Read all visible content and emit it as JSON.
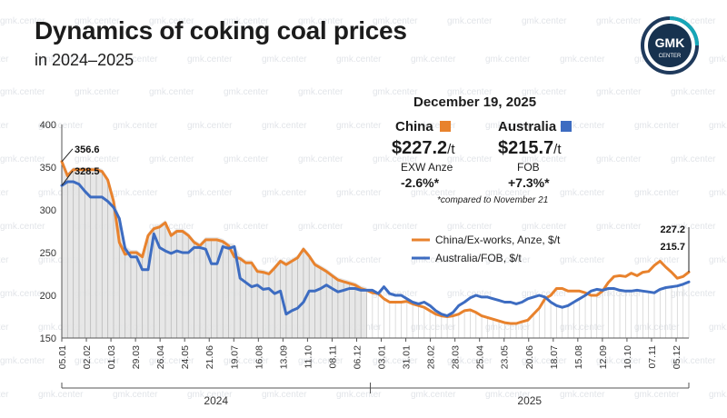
{
  "header": {
    "title": "Dynamics of coking coal prices",
    "subtitle": "in 2024–2025",
    "logo_text_top": "GMK",
    "logo_text_bottom": "CENTER"
  },
  "watermark": "gmk.center",
  "info_box": {
    "date": "December 19, 2025",
    "china": {
      "label": "China",
      "price": "$227.2",
      "unit": "/t",
      "basis": "EXW Anze",
      "change": "-2.6%*"
    },
    "australia": {
      "label": "Australia",
      "price": "$215.7",
      "unit": "/t",
      "basis": "FOB",
      "change": "+7.3%*"
    },
    "footnote": "*compared to November 21"
  },
  "colors": {
    "china": "#e8822d",
    "australia": "#3d6cc1",
    "grid": "#dedede",
    "shade": "#e4e4e4",
    "text": "#1c1c1c"
  },
  "chart_data": {
    "type": "line",
    "ylim": [
      150,
      400
    ],
    "yticks": [
      150,
      200,
      250,
      300,
      350,
      400
    ],
    "xtick_labels": [
      "05.01",
      "02.02",
      "01.03",
      "29.03",
      "26.04",
      "24.05",
      "21.06",
      "19.07",
      "16.08",
      "13.09",
      "11.10",
      "08.11",
      "06.12",
      "03.01",
      "31.01",
      "28.02",
      "28.03",
      "25.04",
      "23.05",
      "20.06",
      "18.07",
      "15.08",
      "12.09",
      "10.10",
      "07.11",
      "05.12"
    ],
    "years": [
      "2024",
      "2025"
    ],
    "series": [
      {
        "name": "China/Ex-works, Anze, $/t",
        "color": "#e8822d",
        "values": [
          356.6,
          340,
          347,
          347,
          347,
          347,
          347,
          345,
          335,
          310,
          262,
          248,
          250,
          250,
          245,
          270,
          278,
          280,
          285,
          270,
          275,
          275,
          270,
          262,
          258,
          265,
          265,
          265,
          263,
          258,
          245,
          243,
          238,
          238,
          228,
          227,
          225,
          232,
          240,
          236,
          240,
          244,
          254,
          246,
          236,
          232,
          228,
          223,
          218,
          216,
          214,
          212,
          208,
          206,
          203,
          202,
          196,
          192,
          192,
          192,
          193,
          190,
          188,
          186,
          182,
          178,
          176,
          175,
          176,
          178,
          182,
          183,
          180,
          176,
          174,
          172,
          170,
          168,
          167,
          167,
          169,
          171,
          178,
          185,
          196,
          200,
          208,
          208,
          205,
          205,
          205,
          203,
          200,
          200,
          205,
          215,
          222,
          223,
          222,
          226,
          223,
          227,
          228,
          235,
          240,
          233,
          227,
          220,
          222,
          227.2
        ]
      },
      {
        "name": "Australia/FOB, $/t",
        "color": "#3d6cc1",
        "values": [
          328.5,
          333,
          333,
          330,
          322,
          315,
          315,
          315,
          310,
          303,
          290,
          255,
          245,
          245,
          230,
          230,
          272,
          256,
          252,
          249,
          252,
          250,
          250,
          256,
          256,
          254,
          237,
          237,
          257,
          255,
          257,
          220,
          215,
          210,
          212,
          207,
          208,
          202,
          205,
          178,
          182,
          185,
          192,
          205,
          205,
          208,
          212,
          208,
          204,
          206,
          208,
          208,
          206,
          206,
          206,
          202,
          210,
          202,
          200,
          200,
          196,
          192,
          190,
          192,
          188,
          182,
          178,
          176,
          180,
          188,
          192,
          197,
          200,
          198,
          198,
          196,
          194,
          192,
          192,
          190,
          192,
          196,
          198,
          200,
          198,
          192,
          188,
          186,
          188,
          192,
          196,
          200,
          205,
          207,
          206,
          208,
          208,
          206,
          205,
          205,
          206,
          205,
          204,
          203,
          207,
          209,
          210,
          211,
          213,
          215.7
        ]
      }
    ],
    "annotations": [
      {
        "text": "356.6",
        "series": 0,
        "index": 0
      },
      {
        "text": "328.5",
        "series": 1,
        "index": 0
      },
      {
        "text": "227.2",
        "series": 0,
        "index": 109
      },
      {
        "text": "215.7",
        "series": 1,
        "index": 109
      }
    ],
    "shaded_year": "2024",
    "legend_position": "center-right",
    "grid": false
  }
}
